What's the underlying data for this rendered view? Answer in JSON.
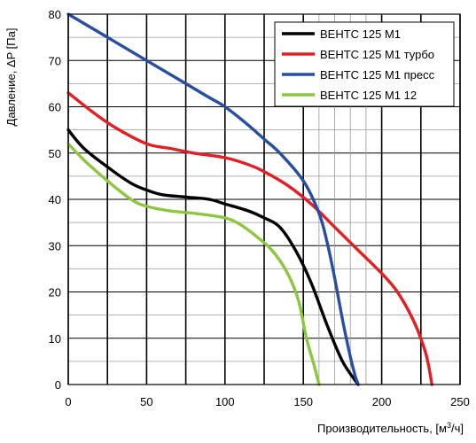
{
  "chart_data": {
    "type": "line",
    "title": "",
    "xlabel_prefix": "Производительность, [м",
    "xlabel_sup": "3",
    "xlabel_suffix": "/ч]",
    "ylabel": "Давление, ΔP [Па]",
    "xlim": [
      0,
      250
    ],
    "ylim": [
      0,
      80
    ],
    "x_ticks": [
      0,
      50,
      100,
      150,
      200,
      250
    ],
    "y_ticks": [
      0,
      10,
      20,
      30,
      40,
      50,
      60,
      70,
      80
    ],
    "x_minor_ticks": [
      0,
      25,
      50,
      75,
      100,
      125,
      150,
      160,
      170,
      180,
      190,
      200,
      225,
      250
    ],
    "y_minor_ticks": [
      0,
      5,
      10,
      15,
      20,
      25,
      30,
      35,
      40,
      45,
      50,
      55,
      60,
      65,
      70,
      75,
      80
    ],
    "grid": true,
    "legend_position": "top-right",
    "series": [
      {
        "name": "ВЕНТС 125 М1",
        "color": "#000000",
        "points": [
          [
            0,
            55
          ],
          [
            10,
            51
          ],
          [
            25,
            47
          ],
          [
            40,
            43.5
          ],
          [
            50,
            42
          ],
          [
            60,
            41
          ],
          [
            75,
            40.5
          ],
          [
            90,
            40
          ],
          [
            100,
            39
          ],
          [
            115,
            37.5
          ],
          [
            125,
            36
          ],
          [
            135,
            34
          ],
          [
            145,
            29
          ],
          [
            155,
            22
          ],
          [
            165,
            13
          ],
          [
            175,
            5
          ],
          [
            185,
            0
          ]
        ]
      },
      {
        "name": "ВЕНТС 125 М1 турбо",
        "color": "#e31e24",
        "points": [
          [
            0,
            63
          ],
          [
            15,
            59
          ],
          [
            30,
            55.5
          ],
          [
            50,
            52
          ],
          [
            65,
            51
          ],
          [
            80,
            50
          ],
          [
            100,
            49
          ],
          [
            115,
            47.5
          ],
          [
            125,
            46
          ],
          [
            140,
            43
          ],
          [
            155,
            39
          ],
          [
            170,
            34
          ],
          [
            185,
            29
          ],
          [
            200,
            24
          ],
          [
            210,
            20
          ],
          [
            220,
            14
          ],
          [
            227,
            8
          ],
          [
            230,
            4
          ],
          [
            232,
            0
          ]
        ]
      },
      {
        "name": "ВЕНТС 125 М1 пресс",
        "color": "#274ea0",
        "points": [
          [
            0,
            80
          ],
          [
            20,
            76
          ],
          [
            50,
            70
          ],
          [
            75,
            65
          ],
          [
            90,
            62
          ],
          [
            100,
            60
          ],
          [
            115,
            56
          ],
          [
            125,
            53
          ],
          [
            135,
            50
          ],
          [
            150,
            44
          ],
          [
            160,
            37
          ],
          [
            165,
            31
          ],
          [
            170,
            23
          ],
          [
            175,
            14
          ],
          [
            180,
            6
          ],
          [
            183,
            2
          ],
          [
            185,
            0
          ]
        ]
      },
      {
        "name": "ВЕНТС 125 М1 12",
        "color": "#8dc63f",
        "points": [
          [
            0,
            52
          ],
          [
            10,
            48.5
          ],
          [
            25,
            44
          ],
          [
            40,
            40
          ],
          [
            50,
            38.5
          ],
          [
            65,
            37.5
          ],
          [
            80,
            37
          ],
          [
            100,
            36
          ],
          [
            110,
            34.5
          ],
          [
            120,
            32
          ],
          [
            130,
            29
          ],
          [
            140,
            24
          ],
          [
            147,
            18
          ],
          [
            152,
            10
          ],
          [
            157,
            4
          ],
          [
            160,
            0
          ]
        ]
      }
    ]
  }
}
